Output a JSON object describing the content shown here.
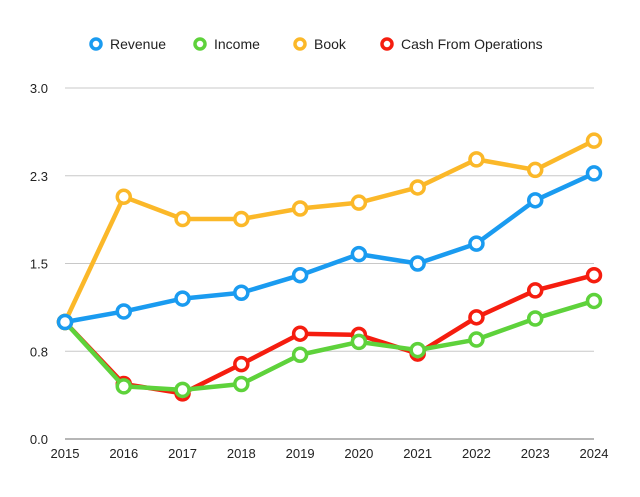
{
  "chart_data": {
    "type": "line",
    "title": "",
    "xlabel": "",
    "ylabel": "",
    "categories": [
      "2015",
      "2016",
      "2017",
      "2018",
      "2019",
      "2020",
      "2021",
      "2022",
      "2023",
      "2024"
    ],
    "ylim": [
      0,
      3.0
    ],
    "yticks": [
      0.0,
      0.75,
      1.5,
      2.25,
      3.0
    ],
    "ytick_labels": [
      "0.0",
      "0.8",
      "1.5",
      "2.3",
      "3.0"
    ],
    "grid": true,
    "legend_position": "top",
    "series": [
      {
        "name": "Revenue",
        "color": "#1a9bf0",
        "values": [
          1.0,
          1.09,
          1.2,
          1.25,
          1.4,
          1.58,
          1.5,
          1.67,
          2.04,
          2.27
        ]
      },
      {
        "name": "Income",
        "color": "#5ed23b",
        "values": [
          1.0,
          0.45,
          0.42,
          0.47,
          0.72,
          0.83,
          0.76,
          0.85,
          1.03,
          1.18
        ]
      },
      {
        "name": "Book",
        "color": "#fbb829",
        "values": [
          1.0,
          2.07,
          1.88,
          1.88,
          1.97,
          2.02,
          2.15,
          2.39,
          2.3,
          2.55
        ]
      },
      {
        "name": "Cash From Operations",
        "color": "#f51d0f",
        "values": [
          1.0,
          0.47,
          0.39,
          0.64,
          0.9,
          0.89,
          0.73,
          1.04,
          1.27,
          1.4
        ]
      }
    ]
  }
}
